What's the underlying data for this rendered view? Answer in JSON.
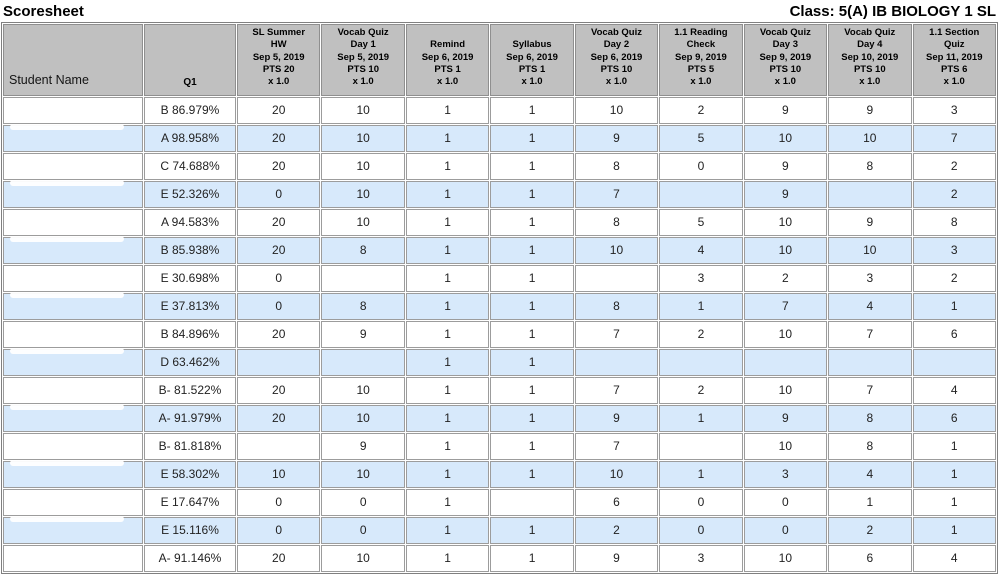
{
  "page": {
    "title": "Scoresheet",
    "class_label": "Class: 5(A) IB BIOLOGY 1 SL"
  },
  "colors": {
    "header_bg": "#c0c0c0",
    "row_alt_bg": "#d7e9fb"
  },
  "table": {
    "student_name_header": "Student Name",
    "q1_header": "Q1",
    "assignments": [
      {
        "name": "SL Summer HW",
        "date": "Sep 5, 2019",
        "pts": "PTS 20",
        "weight": "x 1.0"
      },
      {
        "name": "Vocab Quiz Day 1",
        "date": "Sep 5, 2019",
        "pts": "PTS 10",
        "weight": "x 1.0"
      },
      {
        "name": "Remind",
        "date": "Sep 6, 2019",
        "pts": "PTS 1",
        "weight": "x 1.0"
      },
      {
        "name": "Syllabus",
        "date": "Sep 6, 2019",
        "pts": "PTS 1",
        "weight": "x 1.0"
      },
      {
        "name": "Vocab Quiz Day 2",
        "date": "Sep 6, 2019",
        "pts": "PTS 10",
        "weight": "x 1.0"
      },
      {
        "name": "1.1 Reading Check",
        "date": "Sep 9, 2019",
        "pts": "PTS 5",
        "weight": "x 1.0"
      },
      {
        "name": "Vocab Quiz Day 3",
        "date": "Sep 9, 2019",
        "pts": "PTS 10",
        "weight": "x 1.0"
      },
      {
        "name": "Vocab Quiz Day 4",
        "date": "Sep 10, 2019",
        "pts": "PTS 10",
        "weight": "x 1.0"
      },
      {
        "name": "1.1 Section Quiz",
        "date": "Sep 11, 2019",
        "pts": "PTS 6",
        "weight": "x 1.0"
      }
    ],
    "rows": [
      {
        "name": "",
        "q1": "B 86.979%",
        "scores": [
          "20",
          "10",
          "1",
          "1",
          "10",
          "2",
          "9",
          "9",
          "3"
        ]
      },
      {
        "name": "",
        "q1": "A 98.958%",
        "scores": [
          "20",
          "10",
          "1",
          "1",
          "9",
          "5",
          "10",
          "10",
          "7"
        ]
      },
      {
        "name": "",
        "q1": "C 74.688%",
        "scores": [
          "20",
          "10",
          "1",
          "1",
          "8",
          "0",
          "9",
          "8",
          "2"
        ]
      },
      {
        "name": "",
        "q1": "E 52.326%",
        "scores": [
          "0",
          "10",
          "1",
          "1",
          "7",
          "",
          "9",
          "",
          "2"
        ]
      },
      {
        "name": "",
        "q1": "A 94.583%",
        "scores": [
          "20",
          "10",
          "1",
          "1",
          "8",
          "5",
          "10",
          "9",
          "8"
        ]
      },
      {
        "name": "",
        "q1": "B 85.938%",
        "scores": [
          "20",
          "8",
          "1",
          "1",
          "10",
          "4",
          "10",
          "10",
          "3"
        ]
      },
      {
        "name": "",
        "q1": "E 30.698%",
        "scores": [
          "0",
          "",
          "1",
          "1",
          "",
          "3",
          "2",
          "3",
          "2"
        ]
      },
      {
        "name": "",
        "q1": "E 37.813%",
        "scores": [
          "0",
          "8",
          "1",
          "1",
          "8",
          "1",
          "7",
          "4",
          "1"
        ]
      },
      {
        "name": "",
        "q1": "B 84.896%",
        "scores": [
          "20",
          "9",
          "1",
          "1",
          "7",
          "2",
          "10",
          "7",
          "6"
        ]
      },
      {
        "name": "",
        "q1": "D 63.462%",
        "scores": [
          "",
          "",
          "1",
          "1",
          "",
          "",
          "",
          "",
          ""
        ]
      },
      {
        "name": "",
        "q1": "B- 81.522%",
        "scores": [
          "20",
          "10",
          "1",
          "1",
          "7",
          "2",
          "10",
          "7",
          "4"
        ]
      },
      {
        "name": "",
        "q1": "A- 91.979%",
        "scores": [
          "20",
          "10",
          "1",
          "1",
          "9",
          "1",
          "9",
          "8",
          "6"
        ]
      },
      {
        "name": "",
        "q1": "B- 81.818%",
        "scores": [
          "",
          "9",
          "1",
          "1",
          "7",
          "",
          "10",
          "8",
          "1"
        ]
      },
      {
        "name": "",
        "q1": "E 58.302%",
        "scores": [
          "10",
          "10",
          "1",
          "1",
          "10",
          "1",
          "3",
          "4",
          "1"
        ]
      },
      {
        "name": "",
        "q1": "E 17.647%",
        "scores": [
          "0",
          "0",
          "1",
          "",
          "6",
          "0",
          "0",
          "1",
          "1"
        ]
      },
      {
        "name": "",
        "q1": "E 15.116%",
        "scores": [
          "0",
          "0",
          "1",
          "1",
          "2",
          "0",
          "0",
          "2",
          "1"
        ]
      },
      {
        "name": "",
        "q1": "A- 91.146%",
        "scores": [
          "20",
          "10",
          "1",
          "1",
          "9",
          "3",
          "10",
          "6",
          "4"
        ]
      }
    ]
  }
}
